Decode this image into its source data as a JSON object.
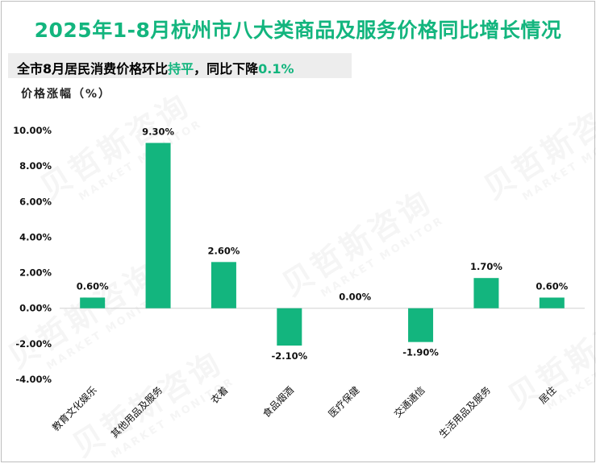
{
  "title": "2025年1-8月杭州市八大类商品及服务价格同比增长情况",
  "subtitle": {
    "prefix": "全市8月居民消费价格环比",
    "highlight1": "持平",
    "middle": "，同比下降",
    "highlight2": "0.1%"
  },
  "watermark": {
    "cn": "贝哲斯咨询",
    "en": "MARKET MONITOR"
  },
  "colors": {
    "accent": "#13b57e",
    "bar": "#13b57e"
  },
  "chart_data": {
    "type": "bar",
    "ylabel": "价格涨幅（%）",
    "categories": [
      "教育文化娱乐",
      "其他用品及服务",
      "衣着",
      "食品烟酒",
      "医疗保健",
      "交通通信",
      "生活用品及服务",
      "居住"
    ],
    "values": [
      0.6,
      9.3,
      2.6,
      -2.1,
      0.0,
      -1.9,
      1.7,
      0.6
    ],
    "data_labels": [
      "0.60%",
      "9.30%",
      "2.60%",
      "-2.10%",
      "0.00%",
      "-1.90%",
      "1.70%",
      "0.60%"
    ],
    "ylim": [
      -4,
      10
    ],
    "yticks": [
      10,
      8,
      6,
      4,
      2,
      0,
      -2,
      -4
    ],
    "ytick_labels": [
      "10.00%",
      "8.00%",
      "6.00%",
      "4.00%",
      "2.00%",
      "0.00%",
      "-2.00%",
      "-4.00%"
    ],
    "grid": false,
    "legend": "none"
  }
}
